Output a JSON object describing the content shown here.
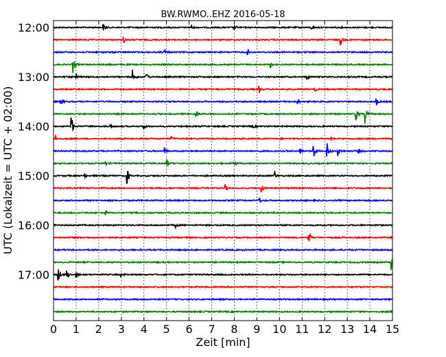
{
  "chart_data": {
    "type": "line",
    "title": "BW.RWMO..EHZ 2016-05-18",
    "xlabel": "Zeit  [min]",
    "ylabel": "UTC (Lokalzeit = UTC + 02:00)",
    "xlim": [
      0,
      15
    ],
    "x_ticks": [
      0,
      1,
      2,
      3,
      4,
      5,
      6,
      7,
      8,
      9,
      10,
      11,
      12,
      13,
      14,
      15
    ],
    "x_tick_labels": [
      "0",
      "1",
      "2",
      "3",
      "4",
      "5",
      "6",
      "7",
      "8",
      "9",
      "10",
      "11",
      "12",
      "13",
      "14",
      "15"
    ],
    "y_ticks": [
      0,
      4,
      8,
      12,
      16,
      20
    ],
    "y_tick_labels": [
      "12:00",
      "13:00",
      "14:00",
      "15:00",
      "16:00",
      "17:00"
    ],
    "grid": "vertical-dotted",
    "colors": [
      "#000000",
      "#ff0000",
      "#0000ff",
      "#008000"
    ],
    "series": [
      {
        "start": "12:00",
        "color": "#000000",
        "events": [
          {
            "t": 2.2,
            "a": 1.0
          },
          {
            "t": 6.1,
            "a": 0.7
          },
          {
            "t": 8.0,
            "a": 0.7
          },
          {
            "t": 11.4,
            "a": 0.6
          }
        ]
      },
      {
        "start": "12:15",
        "color": "#ff0000",
        "events": [
          {
            "t": 3.1,
            "a": 1.2
          },
          {
            "t": 12.7,
            "a": 1.8
          }
        ]
      },
      {
        "start": "12:30",
        "color": "#0000ff",
        "events": [
          {
            "t": 4.9,
            "a": 1.0
          },
          {
            "t": 8.6,
            "a": 0.7
          }
        ]
      },
      {
        "start": "12:45",
        "color": "#008000",
        "events": [
          {
            "t": 0.85,
            "a": 3.2
          },
          {
            "t": 9.6,
            "a": 1.0
          },
          {
            "t": 2.5,
            "a": 0.6
          }
        ]
      },
      {
        "start": "13:00",
        "color": "#000000",
        "events": [
          {
            "t": 3.5,
            "a": 2.2
          },
          {
            "t": 4.1,
            "a": 1.8
          },
          {
            "t": 1.0,
            "a": 1.0
          },
          {
            "t": 11.2,
            "a": 1.0
          }
        ]
      },
      {
        "start": "13:15",
        "color": "#ff0000",
        "events": [
          {
            "t": 9.1,
            "a": 1.3
          },
          {
            "t": 11.6,
            "a": 0.6
          }
        ]
      },
      {
        "start": "13:30",
        "color": "#0000ff",
        "events": [
          {
            "t": 0.3,
            "a": 1.4
          },
          {
            "t": 10.8,
            "a": 0.8
          },
          {
            "t": 14.3,
            "a": 1.0
          }
        ]
      },
      {
        "start": "13:45",
        "color": "#008000",
        "events": [
          {
            "t": 6.3,
            "a": 1.6
          },
          {
            "t": 13.4,
            "a": 2.0
          },
          {
            "t": 13.8,
            "a": 3.0
          }
        ]
      },
      {
        "start": "14:00",
        "color": "#000000",
        "events": [
          {
            "t": 0.8,
            "a": 3.4
          },
          {
            "t": 2.5,
            "a": 1.0
          },
          {
            "t": 4.0,
            "a": 1.0
          },
          {
            "t": 8.8,
            "a": 0.7
          }
        ]
      },
      {
        "start": "14:15",
        "color": "#ff0000",
        "events": [
          {
            "t": 0.1,
            "a": 1.0
          },
          {
            "t": 5.2,
            "a": 0.6
          },
          {
            "t": 12.3,
            "a": 0.6
          }
        ]
      },
      {
        "start": "14:30",
        "color": "#0000ff",
        "events": [
          {
            "t": 4.9,
            "a": 1.3
          },
          {
            "t": 10.9,
            "a": 1.2
          },
          {
            "t": 11.5,
            "a": 3.6
          },
          {
            "t": 12.1,
            "a": 3.4
          },
          {
            "t": 12.6,
            "a": 1.6
          },
          {
            "t": 13.5,
            "a": 0.9
          }
        ]
      },
      {
        "start": "14:45",
        "color": "#008000",
        "events": [
          {
            "t": 2.3,
            "a": 1.0
          },
          {
            "t": 5.0,
            "a": 1.8
          },
          {
            "t": 8.0,
            "a": 0.7
          }
        ]
      },
      {
        "start": "15:00",
        "color": "#000000",
        "events": [
          {
            "t": 3.25,
            "a": 3.0
          },
          {
            "t": 9.8,
            "a": 1.1
          },
          {
            "t": 1.4,
            "a": 0.6
          }
        ]
      },
      {
        "start": "15:15",
        "color": "#ff0000",
        "events": [
          {
            "t": 7.6,
            "a": 1.0
          },
          {
            "t": 9.2,
            "a": 1.4
          }
        ]
      },
      {
        "start": "15:30",
        "color": "#0000ff",
        "events": [
          {
            "t": 9.1,
            "a": 0.9
          }
        ]
      },
      {
        "start": "15:45",
        "color": "#008000",
        "events": [
          {
            "t": 2.3,
            "a": 0.7
          }
        ]
      },
      {
        "start": "16:00",
        "color": "#000000",
        "events": [
          {
            "t": 5.4,
            "a": 0.6
          }
        ]
      },
      {
        "start": "16:15",
        "color": "#ff0000",
        "events": [
          {
            "t": 11.3,
            "a": 2.4
          }
        ]
      },
      {
        "start": "16:30",
        "color": "#0000ff",
        "events": []
      },
      {
        "start": "16:45",
        "color": "#008000",
        "events": [
          {
            "t": 14.95,
            "a": 3.0
          }
        ]
      },
      {
        "start": "17:00",
        "color": "#000000",
        "events": [
          {
            "t": 0.2,
            "a": 2.6
          },
          {
            "t": 0.6,
            "a": 1.6
          },
          {
            "t": 1.0,
            "a": 1.0
          },
          {
            "t": 3.0,
            "a": 0.6
          }
        ]
      },
      {
        "start": "17:15",
        "color": "#ff0000",
        "events": []
      },
      {
        "start": "17:30",
        "color": "#0000ff",
        "events": []
      },
      {
        "start": "17:45",
        "color": "#008000",
        "events": []
      }
    ]
  }
}
